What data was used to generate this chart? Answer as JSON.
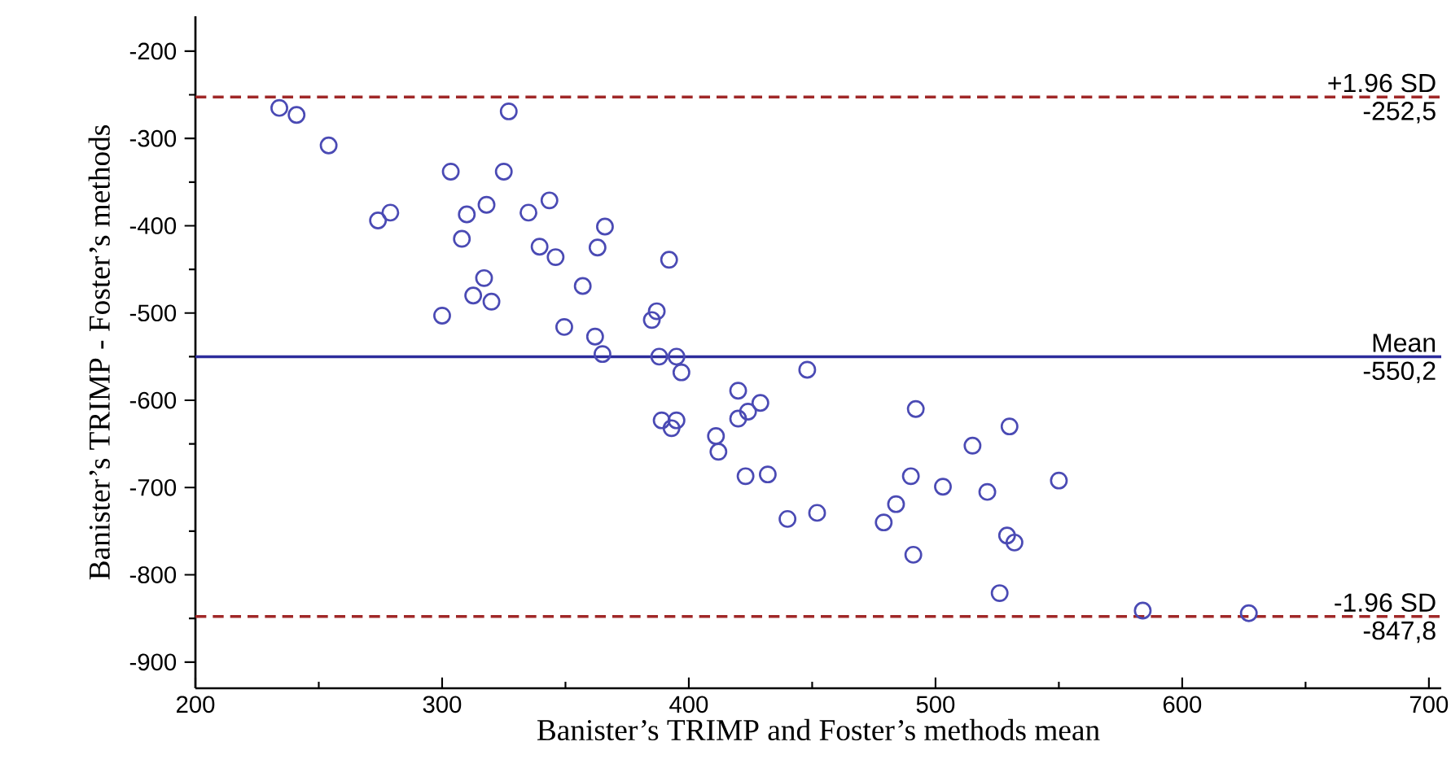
{
  "chart_data": {
    "type": "scatter",
    "xlabel": "Banister’s TRIMP and Foster’s methods mean",
    "ylabel": "Banister’s TRIMP - Foster’s methods",
    "xlim": [
      200,
      705
    ],
    "ylim": [
      -930,
      -160
    ],
    "xticks": [
      200,
      300,
      400,
      500,
      600,
      700
    ],
    "yticks": [
      -200,
      -300,
      -400,
      -500,
      -600,
      -700,
      -800,
      -900
    ],
    "grid": false,
    "marker": "circle",
    "series": [
      {
        "color": "#4a4ab4",
        "x": [
          234,
          241,
          254,
          303.5,
          325,
          327,
          274,
          279,
          310,
          318,
          335,
          343.5,
          308,
          339.5,
          346,
          363,
          366,
          317,
          312.6,
          320,
          300,
          357,
          349.5,
          362,
          365,
          385,
          387,
          388,
          392,
          395,
          397,
          448,
          420,
          429,
          424,
          420,
          492,
          389,
          395,
          393,
          411,
          412,
          530,
          515,
          423,
          432,
          490,
          503,
          521,
          550,
          440,
          452,
          479,
          484,
          529,
          532,
          491,
          526,
          584,
          627
        ],
        "values": [
          -265,
          -273,
          -308,
          -338,
          -338,
          -269,
          -394,
          -385,
          -387,
          -376,
          -385,
          -371,
          -415,
          -424,
          -436,
          -425,
          -401,
          -460,
          -480,
          -487,
          -503,
          -469,
          -516,
          -527,
          -547,
          -508,
          -498,
          -550,
          -439,
          -550,
          -568,
          -565,
          -589,
          -603,
          -613,
          -621,
          -610,
          -623,
          -623,
          -632,
          -641,
          -659,
          -630,
          -652,
          -687,
          -685,
          -687,
          -699,
          -705,
          -692,
          -736,
          -729,
          -740,
          -719,
          -755,
          -763,
          -777,
          -821,
          -841,
          -844
        ]
      }
    ],
    "ref_lines": [
      {
        "axis": "y",
        "value": -252.5,
        "label": "+1.96 SD",
        "color": "#a02828",
        "line_style": "dashed"
      },
      {
        "axis": "y",
        "value": -550.2,
        "label": "Mean",
        "color": "#2c2c9c",
        "line_style": "solid"
      },
      {
        "axis": "y",
        "value": -847.8,
        "label": "-1.96 SD",
        "color": "#a02828",
        "line_style": "dashed"
      }
    ],
    "annotations": [
      {
        "text": "-252,5",
        "y": -252.5
      },
      {
        "text": "-550,2",
        "y": -550.2
      },
      {
        "text": "-847,8",
        "y": -847.8
      }
    ]
  }
}
